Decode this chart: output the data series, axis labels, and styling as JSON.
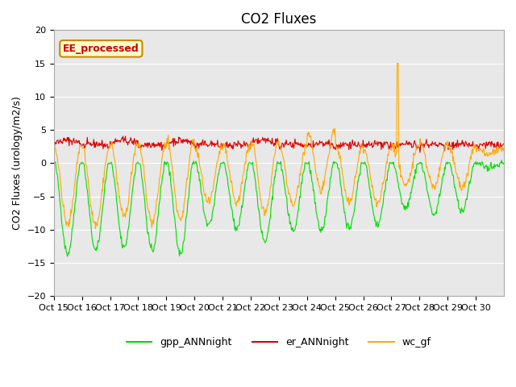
{
  "title": "CO2 Fluxes",
  "ylabel": "CO2 Fluxes (urology/m2/s)",
  "xlabel": "",
  "ylim": [
    -20,
    20
  ],
  "yticks": [
    -20,
    -15,
    -10,
    -5,
    0,
    5,
    10,
    15,
    20
  ],
  "x_tick_labels": [
    "Oct 15",
    "Oct 16",
    "Oct 17",
    "Oct 18",
    "Oct 19",
    "Oct 20",
    "Oct 21",
    "Oct 22",
    "Oct 23",
    "Oct 24",
    "Oct 25",
    "Oct 26",
    "Oct 27",
    "Oct 28",
    "Oct 29",
    "Oct 30"
  ],
  "annotation_text": "EE_processed",
  "annotation_color": "#cc0000",
  "annotation_bg": "#ffffcc",
  "annotation_border": "#cc8800",
  "plot_bg": "#e8e8e8",
  "fig_bg": "#ffffff",
  "line_colors": {
    "gpp": "#00dd00",
    "er": "#dd0000",
    "wc": "#ffaa00"
  },
  "legend": [
    "gpp_ANNnight",
    "er_ANNnight",
    "wc_gf"
  ],
  "legend_colors": [
    "#00dd00",
    "#dd0000",
    "#ffaa00"
  ],
  "n_days": 16,
  "points_per_day": 48,
  "title_fontsize": 12,
  "label_fontsize": 9,
  "tick_fontsize": 8
}
